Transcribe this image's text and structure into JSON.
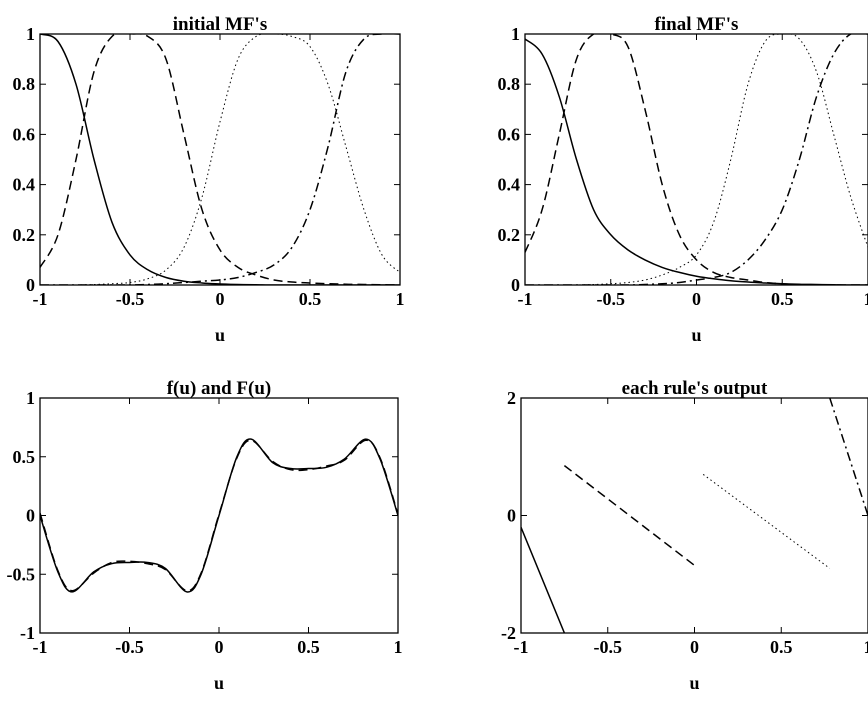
{
  "chart_data": [
    {
      "type": "line",
      "title": "initial MF's",
      "xlabel": "u",
      "ylabel": "",
      "xlim": [
        -1,
        1
      ],
      "ylim": [
        0,
        1
      ],
      "xticks": [
        "-1",
        "-0.5",
        "0",
        "0.5",
        "1"
      ],
      "yticks": [
        "0",
        "0.2",
        "0.4",
        "0.6",
        "0.8",
        "1"
      ],
      "grid": false,
      "x": [
        -1,
        -0.9,
        -0.8,
        -0.7,
        -0.6,
        -0.5,
        -0.4,
        -0.3,
        -0.2,
        -0.1,
        0,
        0.1,
        0.2,
        0.3,
        0.4,
        0.5,
        0.6,
        0.7,
        0.8,
        0.9,
        1
      ],
      "series": [
        {
          "style": "solid",
          "values": [
            1.0,
            0.97,
            0.8,
            0.5,
            0.25,
            0.12,
            0.06,
            0.03,
            0.015,
            0.008,
            0.004,
            0.002,
            0.001,
            0.0,
            0.0,
            0.0,
            0.0,
            0.0,
            0.0,
            0.0,
            0.0
          ]
        },
        {
          "style": "dashed",
          "values": [
            0.07,
            0.2,
            0.5,
            0.85,
            0.99,
            1.0,
            0.99,
            0.9,
            0.6,
            0.3,
            0.14,
            0.07,
            0.04,
            0.02,
            0.012,
            0.008,
            0.005,
            0.003,
            0.002,
            0.001,
            0.0
          ]
        },
        {
          "style": "dotted",
          "values": [
            0.0,
            0.0,
            0.0,
            0.002,
            0.005,
            0.01,
            0.025,
            0.06,
            0.15,
            0.35,
            0.65,
            0.9,
            0.99,
            1.0,
            0.99,
            0.95,
            0.8,
            0.55,
            0.3,
            0.12,
            0.05
          ]
        },
        {
          "style": "dashdot",
          "values": [
            0.0,
            0.0,
            0.0,
            0.0,
            0.0,
            0.0,
            0.002,
            0.005,
            0.01,
            0.015,
            0.02,
            0.03,
            0.05,
            0.08,
            0.15,
            0.3,
            0.55,
            0.85,
            0.98,
            1.0,
            1.0
          ]
        }
      ]
    },
    {
      "type": "line",
      "title": "final MF's",
      "xlabel": "u",
      "ylabel": "",
      "xlim": [
        -1,
        1
      ],
      "ylim": [
        0,
        1
      ],
      "xticks": [
        "-1",
        "-0.5",
        "0",
        "0.5",
        "1"
      ],
      "yticks": [
        "0",
        "0.2",
        "0.4",
        "0.6",
        "0.8",
        "1"
      ],
      "grid": false,
      "x": [
        -1,
        -0.9,
        -0.8,
        -0.7,
        -0.6,
        -0.5,
        -0.4,
        -0.3,
        -0.2,
        -0.1,
        0,
        0.1,
        0.2,
        0.3,
        0.4,
        0.5,
        0.6,
        0.7,
        0.8,
        0.9,
        1
      ],
      "series": [
        {
          "style": "solid",
          "values": [
            0.98,
            0.92,
            0.75,
            0.5,
            0.3,
            0.2,
            0.14,
            0.1,
            0.07,
            0.05,
            0.035,
            0.025,
            0.017,
            0.012,
            0.008,
            0.005,
            0.003,
            0.002,
            0.001,
            0.0,
            0.0
          ]
        },
        {
          "style": "dashed",
          "values": [
            0.13,
            0.3,
            0.6,
            0.9,
            1.0,
            1.0,
            0.95,
            0.7,
            0.4,
            0.2,
            0.1,
            0.05,
            0.03,
            0.02,
            0.01,
            0.005,
            0.0,
            0.0,
            0.0,
            0.0,
            0.0
          ]
        },
        {
          "style": "dotted",
          "values": [
            0.0,
            0.0,
            0.0,
            0.0,
            0.002,
            0.005,
            0.01,
            0.02,
            0.04,
            0.07,
            0.12,
            0.25,
            0.5,
            0.8,
            0.97,
            1.0,
            0.98,
            0.85,
            0.6,
            0.35,
            0.15
          ]
        },
        {
          "style": "dashdot",
          "values": [
            0.0,
            0.0,
            0.0,
            0.0,
            0.0,
            0.0,
            0.0,
            0.002,
            0.005,
            0.01,
            0.02,
            0.03,
            0.05,
            0.1,
            0.18,
            0.3,
            0.5,
            0.75,
            0.92,
            1.0,
            1.0
          ]
        }
      ]
    },
    {
      "type": "line",
      "title": "f(u) and F(u)",
      "xlabel": "u",
      "ylabel": "",
      "xlim": [
        -1,
        1
      ],
      "ylim": [
        -1,
        1
      ],
      "xticks": [
        "-1",
        "-0.5",
        "0",
        "0.5",
        "1"
      ],
      "yticks": [
        "-1",
        "-0.5",
        "0",
        "0.5",
        "1"
      ],
      "grid": false,
      "x": [
        -1,
        -0.9,
        -0.82,
        -0.7,
        -0.6,
        -0.5,
        -0.4,
        -0.3,
        -0.18,
        -0.1,
        0,
        0.1,
        0.18,
        0.3,
        0.4,
        0.5,
        0.6,
        0.7,
        0.82,
        0.9,
        1
      ],
      "series": [
        {
          "style": "solid",
          "values": [
            0.0,
            -0.48,
            -0.65,
            -0.48,
            -0.41,
            -0.4,
            -0.4,
            -0.45,
            -0.65,
            -0.5,
            0.0,
            0.5,
            0.65,
            0.45,
            0.4,
            0.4,
            0.41,
            0.48,
            0.65,
            0.48,
            0.0
          ]
        },
        {
          "style": "dashed",
          "values": [
            0.02,
            -0.47,
            -0.64,
            -0.49,
            -0.4,
            -0.39,
            -0.41,
            -0.46,
            -0.64,
            -0.49,
            0.01,
            0.49,
            0.64,
            0.46,
            0.39,
            0.39,
            0.42,
            0.47,
            0.64,
            0.49,
            0.01
          ]
        }
      ]
    },
    {
      "type": "line",
      "title": "each rule's output",
      "xlabel": "u",
      "ylabel": "",
      "xlim": [
        -1,
        1
      ],
      "ylim": [
        -2,
        2
      ],
      "xticks": [
        "-1",
        "-0.5",
        "0",
        "0.5",
        "1"
      ],
      "yticks": [
        "-2",
        "0",
        "2"
      ],
      "grid": false,
      "series": [
        {
          "style": "solid",
          "x": [
            -1.0,
            -0.75
          ],
          "values": [
            -0.2,
            -2.0
          ]
        },
        {
          "style": "dashed",
          "x": [
            -0.75,
            0.0
          ],
          "values": [
            0.85,
            -0.85
          ]
        },
        {
          "style": "dotted",
          "x": [
            0.05,
            0.78
          ],
          "values": [
            0.7,
            -0.9
          ]
        },
        {
          "style": "dashdot",
          "x": [
            0.78,
            1.0
          ],
          "values": [
            2.0,
            0.0
          ]
        }
      ]
    }
  ]
}
